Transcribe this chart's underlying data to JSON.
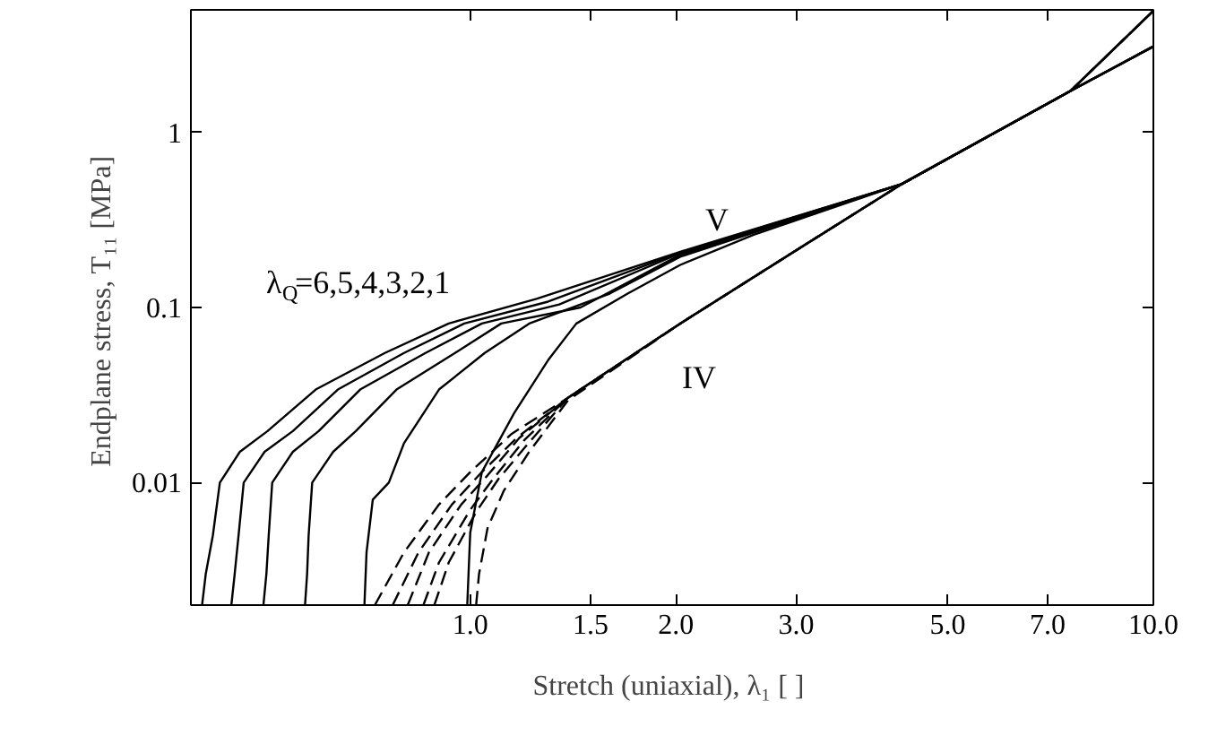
{
  "chart_data": {
    "type": "line",
    "xlabel": "Stretch (uniaxial), λ₁  [ ]",
    "ylabel": "Endplane stress, T₁₁  [MPa]",
    "log": "xy",
    "grid": false,
    "marker": "none",
    "xlim": [
      0.39,
      10
    ],
    "ylim": [
      0.002,
      5
    ],
    "xticks": [
      {
        "value": 1,
        "label": "1.0"
      },
      {
        "value": 1.5,
        "label": "1.5"
      },
      {
        "value": 2,
        "label": "2.0"
      },
      {
        "value": 3,
        "label": "3.0"
      },
      {
        "value": 5,
        "label": "5.0"
      },
      {
        "value": 7,
        "label": "7.0"
      },
      {
        "value": 10,
        "label": "10.0"
      }
    ],
    "yticks": [
      0.01,
      0.1,
      1
    ],
    "annotations": [
      "V",
      "IV",
      "λ$_{Q}$=6,5,4,3,2,1"
    ],
    "series": [
      {
        "color": "#000000",
        "line_style": "solid",
        "x": [
          0.405,
          0.41,
          0.42,
          0.43,
          0.46,
          0.505,
          0.594,
          0.75,
          0.93,
          1.25,
          2.03,
          4.28,
          7.56,
          10
        ],
        "values": [
          0.002,
          0.003,
          0.005,
          0.01,
          0.015,
          0.0197,
          0.034,
          0.055,
          0.081,
          0.112,
          0.208,
          0.506,
          1.72,
          3.09
        ]
      },
      {
        "color": "#000000",
        "line_style": "solid",
        "x": [
          0.447,
          0.452,
          0.458,
          0.466,
          0.5,
          0.55,
          0.64,
          0.8,
          0.98,
          1.3,
          2.03,
          4.28,
          7.56,
          10
        ],
        "values": [
          0.002,
          0.003,
          0.005,
          0.01,
          0.015,
          0.0197,
          0.034,
          0.055,
          0.081,
          0.108,
          0.206,
          0.506,
          1.72,
          3.09
        ]
      },
      {
        "color": "#000000",
        "line_style": "solid",
        "x": [
          0.498,
          0.503,
          0.507,
          0.513,
          0.55,
          0.6,
          0.69,
          0.86,
          1.04,
          1.35,
          2.03,
          4.28,
          7.56,
          10
        ],
        "values": [
          0.002,
          0.003,
          0.005,
          0.01,
          0.015,
          0.0197,
          0.034,
          0.055,
          0.081,
          0.104,
          0.204,
          0.506,
          1.72,
          3.09
        ]
      },
      {
        "color": "#000000",
        "line_style": "solid",
        "x": [
          0.573,
          0.577,
          0.58,
          0.587,
          0.63,
          0.68,
          0.78,
          0.95,
          1.11,
          1.45,
          2.03,
          4.28,
          7.56,
          10
        ],
        "values": [
          0.002,
          0.003,
          0.005,
          0.01,
          0.015,
          0.0197,
          0.034,
          0.055,
          0.081,
          0.1,
          0.2,
          0.506,
          1.72,
          3.09
        ]
      },
      {
        "color": "#000000",
        "line_style": "solid",
        "x": [
          0.7,
          0.705,
          0.72,
          0.76,
          0.8,
          0.9,
          1.05,
          1.22,
          1.6,
          2.03,
          4.28,
          7.56,
          10
        ],
        "values": [
          0.002,
          0.004,
          0.008,
          0.01,
          0.0168,
          0.034,
          0.055,
          0.081,
          0.12,
          0.195,
          0.506,
          1.72,
          3.09
        ]
      },
      {
        "color": "#000000",
        "line_style": "solid",
        "x": [
          0.99,
          1.0,
          1.04,
          1.16,
          1.3,
          1.43,
          1.7,
          2.03,
          2.6,
          4.28,
          7.56,
          10
        ],
        "values": [
          0.002,
          0.0052,
          0.0115,
          0.025,
          0.05,
          0.081,
          0.12,
          0.175,
          0.26,
          0.506,
          1.72,
          3.09
        ]
      },
      {
        "color": "#000000",
        "line_style": "dashed",
        "x": [
          0.725,
          0.8,
          0.9,
          1.0,
          1.15,
          1.39,
          2.03,
          3.0,
          4.28,
          7.56,
          10
        ],
        "values": [
          0.002,
          0.004,
          0.0075,
          0.0115,
          0.019,
          0.0305,
          0.081,
          0.212,
          0.506,
          1.72,
          4.94
        ]
      },
      {
        "color": "#000000",
        "line_style": "dashed",
        "x": [
          0.77,
          0.84,
          0.94,
          1.04,
          1.17,
          1.39,
          2.03,
          3.0,
          4.28,
          7.56,
          10
        ],
        "values": [
          0.002,
          0.004,
          0.0075,
          0.0115,
          0.018,
          0.0305,
          0.081,
          0.212,
          0.506,
          1.72,
          4.94
        ]
      },
      {
        "color": "#000000",
        "line_style": "dashed",
        "x": [
          0.81,
          0.87,
          0.97,
          1.06,
          1.18,
          1.39,
          2.03,
          3.0,
          4.28,
          7.56,
          10
        ],
        "values": [
          0.002,
          0.004,
          0.0075,
          0.011,
          0.018,
          0.0305,
          0.081,
          0.212,
          0.506,
          1.72,
          4.94
        ]
      },
      {
        "color": "#000000",
        "line_style": "dashed",
        "x": [
          0.854,
          0.9,
          1.0,
          1.08,
          1.2,
          1.39,
          2.03,
          3.0,
          4.28,
          7.56,
          10
        ],
        "values": [
          0.002,
          0.0035,
          0.007,
          0.0105,
          0.0175,
          0.0305,
          0.081,
          0.212,
          0.506,
          1.72,
          4.94
        ]
      },
      {
        "color": "#000000",
        "line_style": "dashed",
        "x": [
          0.886,
          0.93,
          1.02,
          1.1,
          1.22,
          1.39,
          2.03,
          3.0,
          4.28,
          7.56,
          10
        ],
        "values": [
          0.002,
          0.0035,
          0.0068,
          0.0105,
          0.017,
          0.0305,
          0.081,
          0.212,
          0.506,
          1.72,
          4.94
        ]
      },
      {
        "color": "#000000",
        "line_style": "dashed",
        "x": [
          1.02,
          1.03,
          1.06,
          1.12,
          1.22,
          1.39,
          2.03,
          3.0,
          4.28,
          7.56,
          10
        ],
        "values": [
          0.002,
          0.003,
          0.0055,
          0.009,
          0.015,
          0.0295,
          0.081,
          0.212,
          0.506,
          1.72,
          4.94
        ]
      }
    ]
  }
}
